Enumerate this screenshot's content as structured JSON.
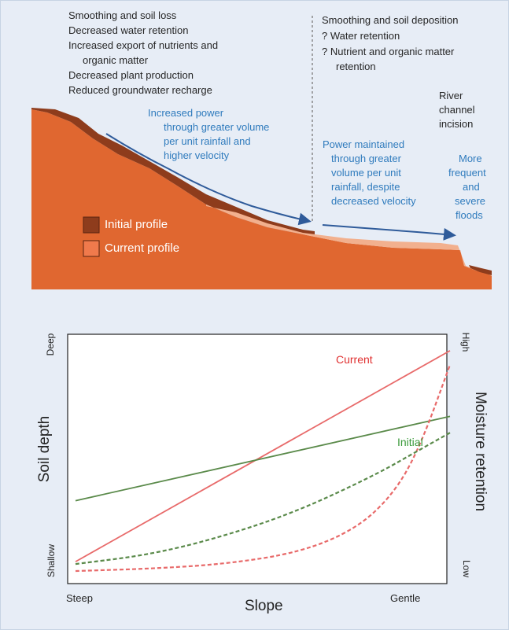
{
  "top_panel": {
    "left_effects": [
      "Smoothing and soil loss",
      "Decreased water retention",
      "Increased export of nutrients and",
      "organic matter",
      "Decreased plant production",
      "Reduced groundwater recharge"
    ],
    "right_effects": [
      "Smoothing and soil deposition",
      "? Water retention",
      "? Nutrient and organic matter",
      "retention"
    ],
    "river_note": [
      "River",
      "channel",
      "incision"
    ],
    "power_upslope": [
      "Increased power",
      "through greater volume",
      "per unit rainfall and",
      "higher velocity"
    ],
    "power_downslope": [
      "Power maintained",
      "through greater",
      "volume per unit",
      "rainfall, despite",
      "decreased velocity"
    ],
    "floods_note": [
      "More",
      "frequent",
      "and",
      "severe",
      "floods"
    ],
    "legend": [
      {
        "label": "Initial profile",
        "color": "#8e3c1c"
      },
      {
        "label": "Current profile",
        "color": "#f07a4c"
      }
    ],
    "colors": {
      "soil_current": "#e06730",
      "soil_initial": "#8e3c1c",
      "deposition": "#f2b08e",
      "arrow": "#2f5b9a",
      "text_blue": "#2f7bbd"
    }
  },
  "chart_data": {
    "type": "line",
    "xlabel": "Slope",
    "ylabel_left": "Soil depth",
    "ylabel_right": "Moisture retention",
    "x_ticks": [
      "Steep",
      "Gentle"
    ],
    "y_left_ticks": [
      "Shallow",
      "Deep"
    ],
    "y_right_ticks": [
      "Low",
      "High"
    ],
    "xlim": [
      0,
      1
    ],
    "ylim": [
      0,
      1
    ],
    "series": [
      {
        "name": "Current",
        "color": "#e86a6a",
        "style": "solid",
        "axis": "left",
        "x": [
          0,
          1
        ],
        "y": [
          0.06,
          0.96
        ]
      },
      {
        "name": "Initial",
        "color": "#5a8a4a",
        "style": "solid",
        "axis": "left",
        "x": [
          0,
          1
        ],
        "y": [
          0.32,
          0.68
        ]
      },
      {
        "color": "#e86a6a",
        "style": "dashed",
        "axis": "right",
        "x": [
          0,
          0.2,
          0.4,
          0.6,
          0.75,
          0.85,
          0.92,
          1.0
        ],
        "y": [
          0.02,
          0.03,
          0.05,
          0.1,
          0.2,
          0.35,
          0.55,
          0.9
        ]
      },
      {
        "color": "#5a8a4a",
        "style": "dashed",
        "axis": "right",
        "x": [
          0,
          0.2,
          0.4,
          0.6,
          0.8,
          0.9,
          1.0
        ],
        "y": [
          0.05,
          0.09,
          0.17,
          0.28,
          0.43,
          0.52,
          0.61
        ]
      }
    ],
    "annotations": [
      {
        "text": "Current",
        "color": "#e03030"
      },
      {
        "text": "Initial",
        "color": "#3a9a3a"
      }
    ]
  }
}
